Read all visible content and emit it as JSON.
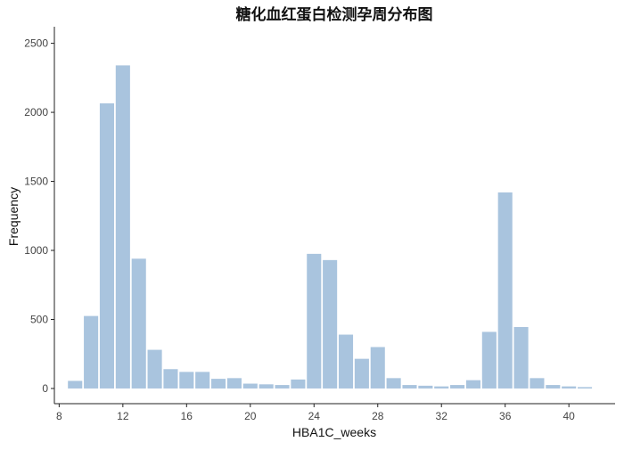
{
  "chart_data": {
    "type": "bar",
    "title": "糖化血红蛋白检测孕周分布图",
    "xlabel": "HBA1C_weeks",
    "ylabel": "Frequency",
    "xlim": [
      7.7,
      42.9
    ],
    "ylim": [
      -110,
      2620
    ],
    "xticks": [
      8,
      12,
      16,
      20,
      24,
      28,
      32,
      36,
      40
    ],
    "yticks": [
      0,
      500,
      1000,
      1500,
      2000,
      2500
    ],
    "x": [
      9,
      10,
      11,
      12,
      13,
      14,
      15,
      16,
      17,
      18,
      19,
      20,
      21,
      22,
      23,
      24,
      25,
      26,
      27,
      28,
      29,
      30,
      31,
      32,
      33,
      34,
      35,
      36,
      37,
      38,
      39,
      40,
      41
    ],
    "values": [
      55,
      525,
      2065,
      2340,
      940,
      280,
      140,
      120,
      120,
      70,
      75,
      35,
      30,
      25,
      65,
      975,
      930,
      390,
      215,
      300,
      75,
      25,
      20,
      15,
      25,
      60,
      410,
      1420,
      445,
      75,
      25,
      15,
      10
    ],
    "bar_color": "#a9c4de",
    "grid": false,
    "legend": "none"
  }
}
